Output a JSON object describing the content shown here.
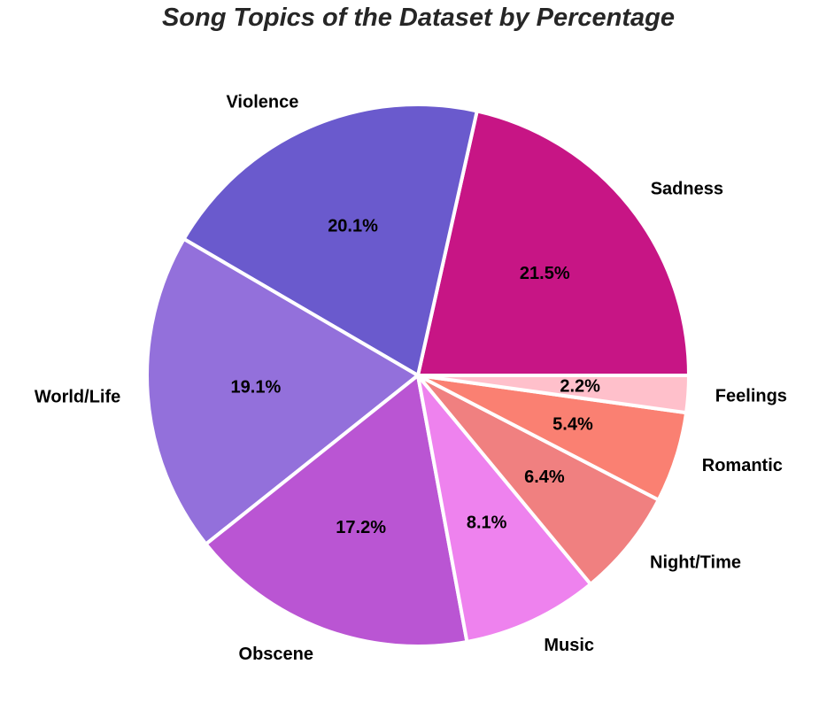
{
  "chart_data": {
    "type": "pie",
    "title": "Song Topics of the Dataset by Percentage",
    "start_angle_deg": 0,
    "direction": "counterclockwise",
    "slices": [
      {
        "label": "Sadness",
        "value": 21.5,
        "pct_label": "21.5%",
        "color": "#c71585"
      },
      {
        "label": "Violence",
        "value": 20.1,
        "pct_label": "20.1%",
        "color": "#6a5acd"
      },
      {
        "label": "World/Life",
        "value": 19.1,
        "pct_label": "19.1%",
        "color": "#9370db"
      },
      {
        "label": "Obscene",
        "value": 17.2,
        "pct_label": "17.2%",
        "color": "#ba55d3"
      },
      {
        "label": "Music",
        "value": 8.1,
        "pct_label": "8.1%",
        "color": "#ee82ee"
      },
      {
        "label": "Night/Time",
        "value": 6.4,
        "pct_label": "6.4%",
        "color": "#f08080"
      },
      {
        "label": "Romantic",
        "value": 5.4,
        "pct_label": "5.4%",
        "color": "#fa8072"
      },
      {
        "label": "Feelings",
        "value": 2.2,
        "pct_label": "2.2%",
        "color": "#ffc0cb"
      }
    ]
  }
}
